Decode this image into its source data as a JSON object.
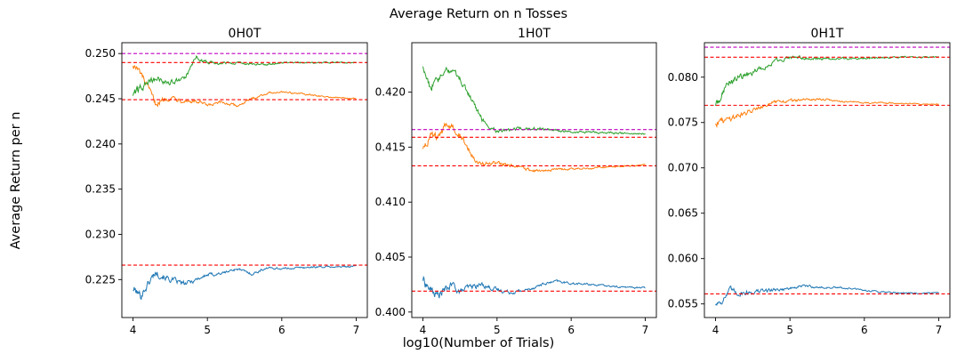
{
  "figure": {
    "suptitle": "Average Return on n Tosses",
    "supxlabel": "log10(Number of Trials)",
    "supylabel": "Average Return per n"
  },
  "colors": {
    "series": [
      "#1f77b4",
      "#ff7f0e",
      "#2ca02c"
    ],
    "reference_line": "#ff0000",
    "top_reference_line": "#c000c0"
  },
  "chart_data": [
    {
      "type": "line",
      "title": "0H0T",
      "xlabel": "",
      "ylabel": "",
      "xlim": [
        3.85,
        7.15
      ],
      "ylim": [
        0.2208,
        0.2512
      ],
      "xticks": [
        4,
        5,
        6,
        7
      ],
      "yticks": [
        0.225,
        0.23,
        0.235,
        0.24,
        0.245,
        0.25
      ],
      "ytick_labels": [
        "0.225",
        "0.230",
        "0.235",
        "0.240",
        "0.245",
        "0.250"
      ],
      "grid": false,
      "reference_lines": [
        {
          "y": 0.25,
          "color": "#c000c0"
        },
        {
          "y": 0.249,
          "color": "#ff0000"
        },
        {
          "y": 0.2449,
          "color": "#ff0000"
        },
        {
          "y": 0.2266,
          "color": "#ff0000"
        }
      ],
      "series": [
        {
          "color": "#1f77b4",
          "noise": 0.00045,
          "x": [
            4.0,
            4.1,
            4.2,
            4.3,
            4.5,
            4.7,
            4.9,
            5.0,
            5.2,
            5.4,
            5.6,
            5.8,
            6.0,
            6.2,
            6.5,
            6.8,
            7.0
          ],
          "y": [
            0.224,
            0.2232,
            0.2245,
            0.2258,
            0.225,
            0.2245,
            0.2252,
            0.2255,
            0.2257,
            0.2262,
            0.2256,
            0.2263,
            0.2262,
            0.2263,
            0.2264,
            0.2264,
            0.2265
          ]
        },
        {
          "color": "#ff7f0e",
          "noise": 0.0004,
          "x": [
            4.0,
            4.1,
            4.2,
            4.3,
            4.4,
            4.5,
            4.7,
            4.9,
            5.0,
            5.2,
            5.4,
            5.6,
            5.8,
            6.0,
            6.3,
            6.6,
            7.0
          ],
          "y": [
            0.2488,
            0.2478,
            0.2462,
            0.2445,
            0.2448,
            0.2452,
            0.2448,
            0.2446,
            0.2442,
            0.2446,
            0.2442,
            0.245,
            0.2456,
            0.2458,
            0.2455,
            0.2452,
            0.245
          ]
        },
        {
          "color": "#2ca02c",
          "noise": 0.0004,
          "x": [
            4.0,
            4.1,
            4.2,
            4.3,
            4.5,
            4.7,
            4.8,
            4.85,
            4.9,
            5.0,
            5.2,
            5.4,
            5.6,
            5.8,
            6.0,
            6.5,
            7.0
          ],
          "y": [
            0.2455,
            0.2462,
            0.2468,
            0.2472,
            0.2468,
            0.2472,
            0.2488,
            0.2498,
            0.2492,
            0.249,
            0.249,
            0.249,
            0.2488,
            0.2488,
            0.249,
            0.249,
            0.249
          ]
        }
      ]
    },
    {
      "type": "line",
      "title": "1H0T",
      "xlabel": "",
      "ylabel": "",
      "xlim": [
        3.85,
        7.15
      ],
      "ylim": [
        0.3995,
        0.4245
      ],
      "xticks": [
        4,
        5,
        6,
        7
      ],
      "yticks": [
        0.4,
        0.405,
        0.41,
        0.415,
        0.42
      ],
      "ytick_labels": [
        "0.400",
        "0.405",
        "0.410",
        "0.415",
        "0.420"
      ],
      "grid": false,
      "reference_lines": [
        {
          "y": 0.4166,
          "color": "#c000c0"
        },
        {
          "y": 0.4159,
          "color": "#ff0000"
        },
        {
          "y": 0.4133,
          "color": "#ff0000"
        },
        {
          "y": 0.4019,
          "color": "#ff0000"
        }
      ],
      "series": [
        {
          "color": "#1f77b4",
          "noise": 0.0004,
          "x": [
            4.0,
            4.1,
            4.2,
            4.3,
            4.4,
            4.5,
            4.6,
            4.8,
            5.0,
            5.2,
            5.4,
            5.6,
            5.8,
            6.0,
            6.3,
            6.6,
            7.0
          ],
          "y": [
            0.403,
            0.402,
            0.4015,
            0.402,
            0.4025,
            0.4018,
            0.4022,
            0.4025,
            0.402,
            0.4018,
            0.402,
            0.4025,
            0.4028,
            0.4026,
            0.4025,
            0.4023,
            0.4022
          ]
        },
        {
          "color": "#ff7f0e",
          "noise": 0.0004,
          "x": [
            4.0,
            4.1,
            4.2,
            4.3,
            4.4,
            4.5,
            4.6,
            4.7,
            4.8,
            5.0,
            5.2,
            5.4,
            5.6,
            5.8,
            6.0,
            6.5,
            7.0
          ],
          "y": [
            0.415,
            0.416,
            0.4158,
            0.4168,
            0.417,
            0.4162,
            0.415,
            0.414,
            0.4135,
            0.4135,
            0.4133,
            0.413,
            0.4128,
            0.413,
            0.413,
            0.4132,
            0.4134
          ]
        },
        {
          "color": "#2ca02c",
          "noise": 0.0004,
          "x": [
            4.0,
            4.05,
            4.1,
            4.2,
            4.3,
            4.4,
            4.5,
            4.6,
            4.7,
            4.8,
            4.9,
            5.0,
            5.2,
            5.5,
            6.0,
            6.5,
            7.0
          ],
          "y": [
            0.4225,
            0.4215,
            0.4205,
            0.421,
            0.4218,
            0.422,
            0.4212,
            0.42,
            0.4188,
            0.4175,
            0.4168,
            0.4165,
            0.4166,
            0.4167,
            0.4164,
            0.4163,
            0.4162
          ]
        }
      ]
    },
    {
      "type": "line",
      "title": "0H1T",
      "xlabel": "",
      "ylabel": "",
      "xlim": [
        3.85,
        7.15
      ],
      "ylim": [
        0.0535,
        0.0838
      ],
      "xticks": [
        4,
        5,
        6,
        7
      ],
      "yticks": [
        0.055,
        0.06,
        0.065,
        0.07,
        0.075,
        0.08
      ],
      "ytick_labels": [
        "0.055",
        "0.060",
        "0.065",
        "0.070",
        "0.075",
        "0.080"
      ],
      "grid": false,
      "reference_lines": [
        {
          "y": 0.0833,
          "color": "#c000c0"
        },
        {
          "y": 0.0822,
          "color": "#ff0000"
        },
        {
          "y": 0.0769,
          "color": "#ff0000"
        },
        {
          "y": 0.0561,
          "color": "#ff0000"
        }
      ],
      "series": [
        {
          "color": "#1f77b4",
          "noise": 0.00035,
          "x": [
            4.0,
            4.1,
            4.2,
            4.3,
            4.5,
            4.7,
            5.0,
            5.2,
            5.4,
            5.6,
            5.8,
            6.0,
            6.3,
            6.6,
            7.0
          ],
          "y": [
            0.055,
            0.0555,
            0.0565,
            0.0562,
            0.0563,
            0.0565,
            0.0567,
            0.057,
            0.0568,
            0.0568,
            0.0567,
            0.0565,
            0.0563,
            0.0562,
            0.0562
          ]
        },
        {
          "color": "#ff7f0e",
          "noise": 0.00035,
          "x": [
            4.0,
            4.1,
            4.2,
            4.3,
            4.4,
            4.5,
            4.6,
            4.8,
            5.0,
            5.2,
            5.4,
            5.6,
            5.8,
            6.0,
            6.5,
            7.0
          ],
          "y": [
            0.075,
            0.0752,
            0.0755,
            0.0758,
            0.076,
            0.0765,
            0.0768,
            0.0772,
            0.0774,
            0.0775,
            0.0776,
            0.0774,
            0.0773,
            0.0772,
            0.0771,
            0.077
          ]
        },
        {
          "color": "#2ca02c",
          "noise": 0.0004,
          "x": [
            4.0,
            4.05,
            4.1,
            4.2,
            4.3,
            4.4,
            4.5,
            4.6,
            4.7,
            4.8,
            4.9,
            5.0,
            5.2,
            5.5,
            6.0,
            6.5,
            7.0
          ],
          "y": [
            0.077,
            0.0775,
            0.0785,
            0.0795,
            0.08,
            0.0802,
            0.0805,
            0.081,
            0.0812,
            0.0818,
            0.082,
            0.0822,
            0.0821,
            0.082,
            0.0821,
            0.0822,
            0.0822
          ]
        }
      ]
    }
  ]
}
